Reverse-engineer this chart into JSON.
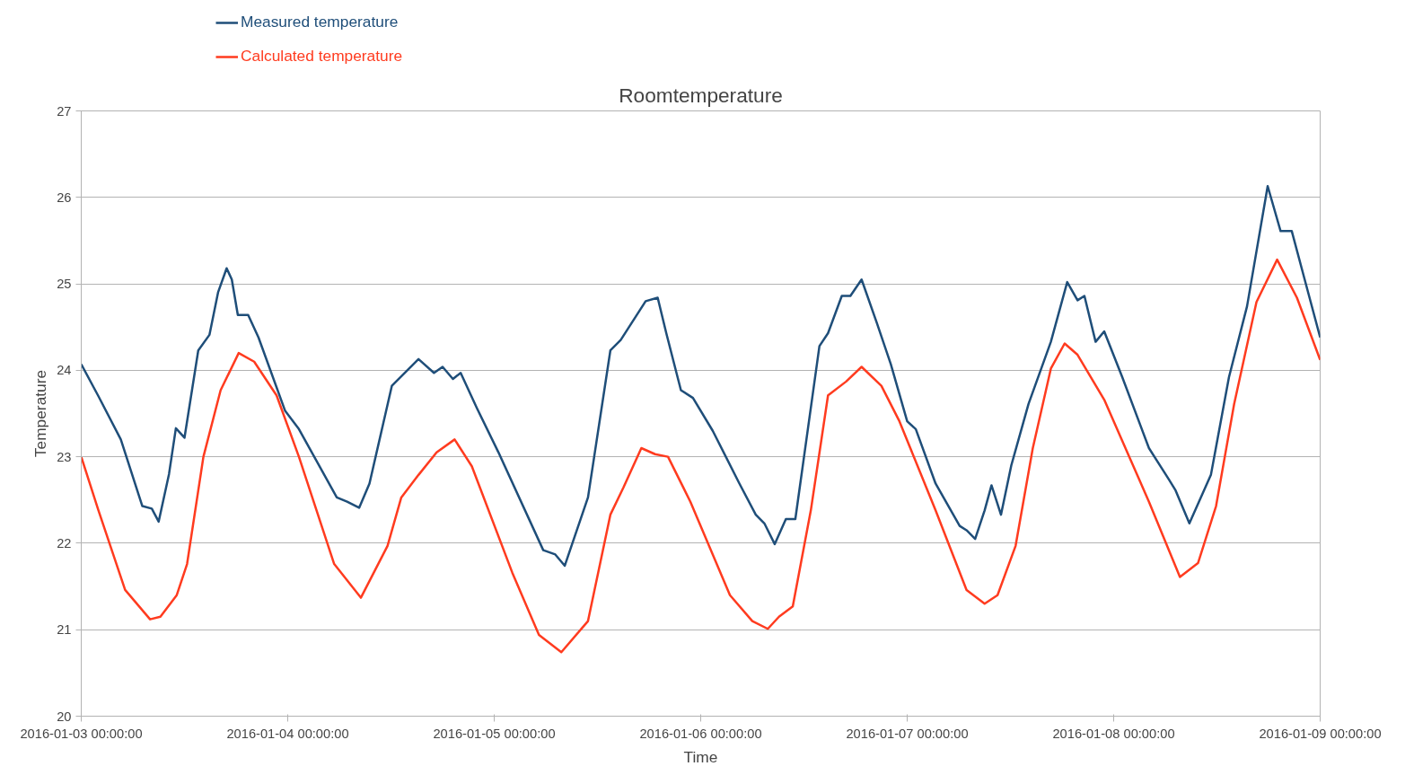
{
  "chart_data": {
    "type": "line",
    "title": "Roomtemperature",
    "xlabel": "Time",
    "ylabel": "Temperature",
    "xlim": [
      "2016-01-03T00:00",
      "2016-01-09T00:00"
    ],
    "xticks": [
      {
        "value": "2016-01-03T00:00",
        "label": "2016-01-03 00:00:00"
      },
      {
        "value": "2016-01-04T00:00",
        "label": "2016-01-04 00:00:00"
      },
      {
        "value": "2016-01-05T00:00",
        "label": "2016-01-05 00:00:00"
      },
      {
        "value": "2016-01-06T00:00",
        "label": "2016-01-06 00:00:00"
      },
      {
        "value": "2016-01-07T00:00",
        "label": "2016-01-07 00:00:00"
      },
      {
        "value": "2016-01-08T00:00",
        "label": "2016-01-08 00:00:00"
      },
      {
        "value": "2016-01-09T00:00",
        "label": "2016-01-09 00:00:00"
      }
    ],
    "ylim": [
      20,
      27
    ],
    "yticks": [
      20,
      21,
      22,
      23,
      24,
      25,
      26,
      27
    ],
    "grid": "y",
    "legend": "top left",
    "marker": "none",
    "line_style": "solid",
    "series": [
      {
        "name": "Measured temperature",
        "color": "#1f4e79",
        "x": [
          "2016-01-03T00:00",
          "2016-01-03T02:00",
          "2016-01-03T04:36",
          "2016-01-03T07:06",
          "2016-01-03T08:12",
          "2016-01-03T09:00",
          "2016-01-03T10:12",
          "2016-01-03T11:00",
          "2016-01-03T12:00",
          "2016-01-03T13:36",
          "2016-01-03T14:54",
          "2016-01-03T15:54",
          "2016-01-03T16:54",
          "2016-01-03T17:30",
          "2016-01-03T18:12",
          "2016-01-03T19:24",
          "2016-01-03T20:36",
          "2016-01-03T23:42",
          "2016-01-04T01:18",
          "2016-01-04T05:42",
          "2016-01-04T06:54",
          "2016-01-04T08:18",
          "2016-01-04T09:30",
          "2016-01-04T12:06",
          "2016-01-04T15:12",
          "2016-01-04T17:00",
          "2016-01-04T18:00",
          "2016-01-04T19:12",
          "2016-01-04T20:06",
          "2016-01-04T22:00",
          "2016-01-05T00:30",
          "2016-01-05T05:42",
          "2016-01-05T07:06",
          "2016-01-05T08:12",
          "2016-01-05T10:54",
          "2016-01-05T13:30",
          "2016-01-05T14:42",
          "2016-01-05T17:36",
          "2016-01-05T19:00",
          "2016-01-05T20:00",
          "2016-01-05T21:42",
          "2016-01-05T23:06",
          "2016-01-06T01:24",
          "2016-01-06T04:30",
          "2016-01-06T06:24",
          "2016-01-06T07:24",
          "2016-01-06T08:36",
          "2016-01-06T09:54",
          "2016-01-06T11:00",
          "2016-01-06T13:48",
          "2016-01-06T14:48",
          "2016-01-06T16:24",
          "2016-01-06T17:24",
          "2016-01-06T18:42",
          "2016-01-06T20:30",
          "2016-01-06T22:06",
          "2016-01-07T00:00",
          "2016-01-07T01:00",
          "2016-01-07T03:18",
          "2016-01-07T06:06",
          "2016-01-07T06:54",
          "2016-01-07T07:54",
          "2016-01-07T09:00",
          "2016-01-07T09:48",
          "2016-01-07T10:54",
          "2016-01-07T12:06",
          "2016-01-07T14:06",
          "2016-01-07T16:42",
          "2016-01-07T18:36",
          "2016-01-07T19:48",
          "2016-01-07T20:36",
          "2016-01-07T21:54",
          "2016-01-07T22:54",
          "2016-01-08T01:00",
          "2016-01-08T04:06",
          "2016-01-08T06:24",
          "2016-01-08T07:12",
          "2016-01-08T08:48",
          "2016-01-08T11:18",
          "2016-01-08T13:24",
          "2016-01-08T15:30",
          "2016-01-08T17:54",
          "2016-01-08T19:24",
          "2016-01-08T20:42",
          "2016-01-08T22:12",
          "2016-01-09T00:00"
        ],
        "values": [
          24.07,
          23.7,
          23.2,
          22.43,
          22.4,
          22.25,
          22.8,
          23.33,
          23.22,
          24.23,
          24.41,
          24.9,
          25.18,
          25.05,
          24.64,
          24.64,
          24.38,
          23.53,
          23.32,
          22.53,
          22.48,
          22.41,
          22.69,
          23.82,
          24.13,
          23.97,
          24.04,
          23.9,
          23.97,
          23.56,
          23.05,
          21.92,
          21.87,
          21.74,
          22.53,
          24.23,
          24.35,
          24.8,
          24.84,
          24.43,
          23.77,
          23.68,
          23.3,
          22.69,
          22.33,
          22.23,
          21.99,
          22.28,
          22.28,
          24.28,
          24.43,
          24.86,
          24.86,
          25.05,
          24.54,
          24.07,
          23.41,
          23.32,
          22.69,
          22.2,
          22.15,
          22.05,
          22.38,
          22.67,
          22.33,
          22.9,
          23.61,
          24.33,
          25.02,
          24.81,
          24.86,
          24.33,
          24.45,
          23.92,
          23.1,
          22.74,
          22.61,
          22.23,
          22.79,
          23.92,
          24.74,
          26.13,
          25.61,
          25.61,
          25.05,
          24.38
        ]
      },
      {
        "name": "Calculated temperature",
        "color": "#ff3b1f",
        "x": [
          "2016-01-03T00:00",
          "2016-01-03T02:00",
          "2016-01-03T05:06",
          "2016-01-03T08:00",
          "2016-01-03T09:12",
          "2016-01-03T11:06",
          "2016-01-03T12:18",
          "2016-01-03T14:12",
          "2016-01-03T16:12",
          "2016-01-03T18:18",
          "2016-01-03T20:06",
          "2016-01-03T22:42",
          "2016-01-04T01:18",
          "2016-01-04T05:24",
          "2016-01-04T08:30",
          "2016-01-04T11:36",
          "2016-01-04T13:12",
          "2016-01-04T15:12",
          "2016-01-04T17:18",
          "2016-01-04T19:24",
          "2016-01-04T21:24",
          "2016-01-05T02:06",
          "2016-01-05T05:12",
          "2016-01-05T07:48",
          "2016-01-05T10:54",
          "2016-01-05T13:30",
          "2016-01-05T15:00",
          "2016-01-05T17:06",
          "2016-01-05T18:42",
          "2016-01-05T20:12",
          "2016-01-05T22:48",
          "2016-01-06T03:24",
          "2016-01-06T06:00",
          "2016-01-06T07:48",
          "2016-01-06T09:06",
          "2016-01-06T10:42",
          "2016-01-06T12:48",
          "2016-01-06T14:48",
          "2016-01-06T16:54",
          "2016-01-06T18:42",
          "2016-01-06T21:00",
          "2016-01-06T23:06",
          "2016-01-07T03:18",
          "2016-01-07T06:54",
          "2016-01-07T09:00",
          "2016-01-07T10:30",
          "2016-01-07T12:36",
          "2016-01-07T14:36",
          "2016-01-07T16:42",
          "2016-01-07T18:18",
          "2016-01-07T19:48",
          "2016-01-07T22:54",
          "2016-01-08T04:06",
          "2016-01-08T07:42",
          "2016-01-08T09:48",
          "2016-01-08T11:54",
          "2016-01-08T14:00",
          "2016-01-08T16:36",
          "2016-01-08T19:00",
          "2016-01-08T21:18",
          "2016-01-09T00:00"
        ],
        "values": [
          23.0,
          22.38,
          21.46,
          21.12,
          21.15,
          21.4,
          21.76,
          23.0,
          23.77,
          24.2,
          24.1,
          23.71,
          23.0,
          21.76,
          21.37,
          21.97,
          22.53,
          22.79,
          23.05,
          23.2,
          22.89,
          21.66,
          20.94,
          20.74,
          21.1,
          22.33,
          22.64,
          23.1,
          23.03,
          23.0,
          22.48,
          21.4,
          21.1,
          21.01,
          21.15,
          21.27,
          22.38,
          23.71,
          23.87,
          24.04,
          23.82,
          23.41,
          22.38,
          21.46,
          21.3,
          21.4,
          21.97,
          23.1,
          24.02,
          24.31,
          24.18,
          23.66,
          22.48,
          21.61,
          21.77,
          22.43,
          23.61,
          24.79,
          25.28,
          24.84,
          24.12
        ]
      }
    ]
  }
}
